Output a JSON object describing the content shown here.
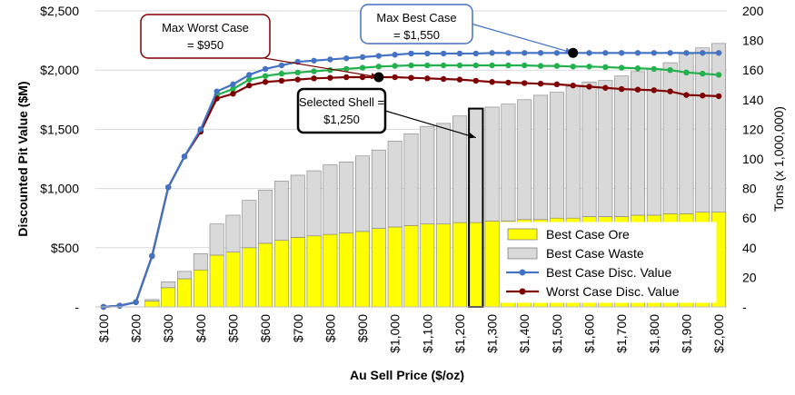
{
  "chart_data": {
    "type": "bar",
    "xlabel": "Au Sell Price ($/oz)",
    "ylabel": "Discounted Pit Value ($M)",
    "y2label": "Tons (x 1,000,000)",
    "ylim": [
      0,
      2500
    ],
    "y2lim": [
      0,
      200
    ],
    "yticks": [
      "-",
      "$500",
      "$1,000",
      "$1,500",
      "$2,000",
      "$2,500"
    ],
    "y2ticks": [
      "-",
      "20",
      "40",
      "60",
      "80",
      "100",
      "120",
      "140",
      "160",
      "180",
      "200"
    ],
    "xticks": [
      "$100",
      "$200",
      "$300",
      "$400",
      "$500",
      "$600",
      "$700",
      "$800",
      "$900",
      "$1,000",
      "$1,100",
      "$1,200",
      "$1,300",
      "$1,400",
      "$1,500",
      "$1,600",
      "$1,700",
      "$1,800",
      "$1,900",
      "$2,000"
    ],
    "x": [
      100,
      150,
      200,
      250,
      300,
      350,
      400,
      450,
      500,
      550,
      600,
      650,
      700,
      750,
      800,
      850,
      900,
      950,
      1000,
      1050,
      1100,
      1150,
      1200,
      1250,
      1300,
      1350,
      1400,
      1450,
      1500,
      1550,
      1600,
      1650,
      1700,
      1750,
      1800,
      1850,
      1900,
      1950,
      2000
    ],
    "series": [
      {
        "name": "Best Case Ore",
        "kind": "bar",
        "axis": "right",
        "color": "#ffff00",
        "values": [
          0,
          0,
          0,
          4,
          13,
          19,
          25,
          35,
          37,
          40,
          43,
          45,
          47,
          48,
          49,
          50,
          51,
          53,
          54,
          55,
          56,
          56,
          57,
          57,
          58,
          58,
          59,
          59,
          60,
          60,
          61,
          61,
          61,
          62,
          62,
          63,
          63,
          64,
          64
        ]
      },
      {
        "name": "Best Case Waste",
        "kind": "bar",
        "axis": "right",
        "color": "#d9d9d9",
        "values": [
          0,
          0,
          0,
          1,
          4,
          5,
          11,
          21,
          25,
          32,
          36,
          40,
          42,
          44,
          47,
          48,
          51,
          53,
          58,
          62,
          66,
          68,
          72,
          77,
          77,
          79,
          81,
          84,
          85,
          89,
          91,
          92,
          95,
          97,
          99,
          102,
          108,
          111,
          114
        ]
      },
      {
        "name": "Best Case Disc. Value",
        "kind": "line",
        "axis": "left",
        "color": "#4472c4",
        "values": [
          0,
          10,
          40,
          430,
          1010,
          1270,
          1500,
          1820,
          1880,
          1960,
          2010,
          2040,
          2070,
          2080,
          2090,
          2100,
          2110,
          2120,
          2130,
          2140,
          2140,
          2140,
          2140,
          2140,
          2145,
          2145,
          2145,
          2145,
          2145,
          2145,
          2145,
          2145,
          2145,
          2145,
          2145,
          2145,
          2145,
          2145,
          2145
        ]
      },
      {
        "name": "Worst Case Disc. Value",
        "kind": "line",
        "axis": "left",
        "color": "#7f0000",
        "values": [
          0,
          10,
          40,
          430,
          1010,
          1270,
          1480,
          1760,
          1800,
          1870,
          1900,
          1910,
          1920,
          1930,
          1935,
          1940,
          1940,
          1940,
          1940,
          1935,
          1930,
          1925,
          1920,
          1910,
          1900,
          1895,
          1890,
          1885,
          1880,
          1870,
          1860,
          1850,
          1840,
          1835,
          1830,
          1820,
          1790,
          1785,
          1780
        ]
      },
      {
        "name": "",
        "kind": "line",
        "axis": "left",
        "color": "#22b14c",
        "values": [
          0,
          10,
          40,
          430,
          1010,
          1270,
          1490,
          1790,
          1840,
          1920,
          1950,
          1970,
          1980,
          1990,
          2000,
          2010,
          2020,
          2030,
          2035,
          2040,
          2040,
          2040,
          2040,
          2040,
          2040,
          2040,
          2040,
          2035,
          2035,
          2030,
          2030,
          2025,
          2020,
          2015,
          2010,
          2000,
          1980,
          1970,
          1960
        ]
      }
    ],
    "legend": {
      "position": "bottom-right",
      "entries": [
        "Best Case Ore",
        "Best Case Waste",
        "Best Case Disc. Value",
        "Worst Case Disc. Value"
      ]
    },
    "annotations": [
      {
        "id": "max-worst",
        "lines": [
          "Max Worst Case",
          "= $950"
        ],
        "x": 950,
        "y": 1940,
        "color": "#7f0000",
        "marker": "circle"
      },
      {
        "id": "max-best",
        "lines": [
          "Max Best Case",
          "= $1,550"
        ],
        "x": 1550,
        "y": 2145,
        "color": "#4472c4",
        "marker": "circle"
      },
      {
        "id": "selected",
        "lines": [
          "Selected Shell =",
          "$1,250"
        ],
        "x": 1250,
        "y": 1430,
        "color": "#000000",
        "marker": "outlined-bar"
      }
    ],
    "grid": true
  }
}
